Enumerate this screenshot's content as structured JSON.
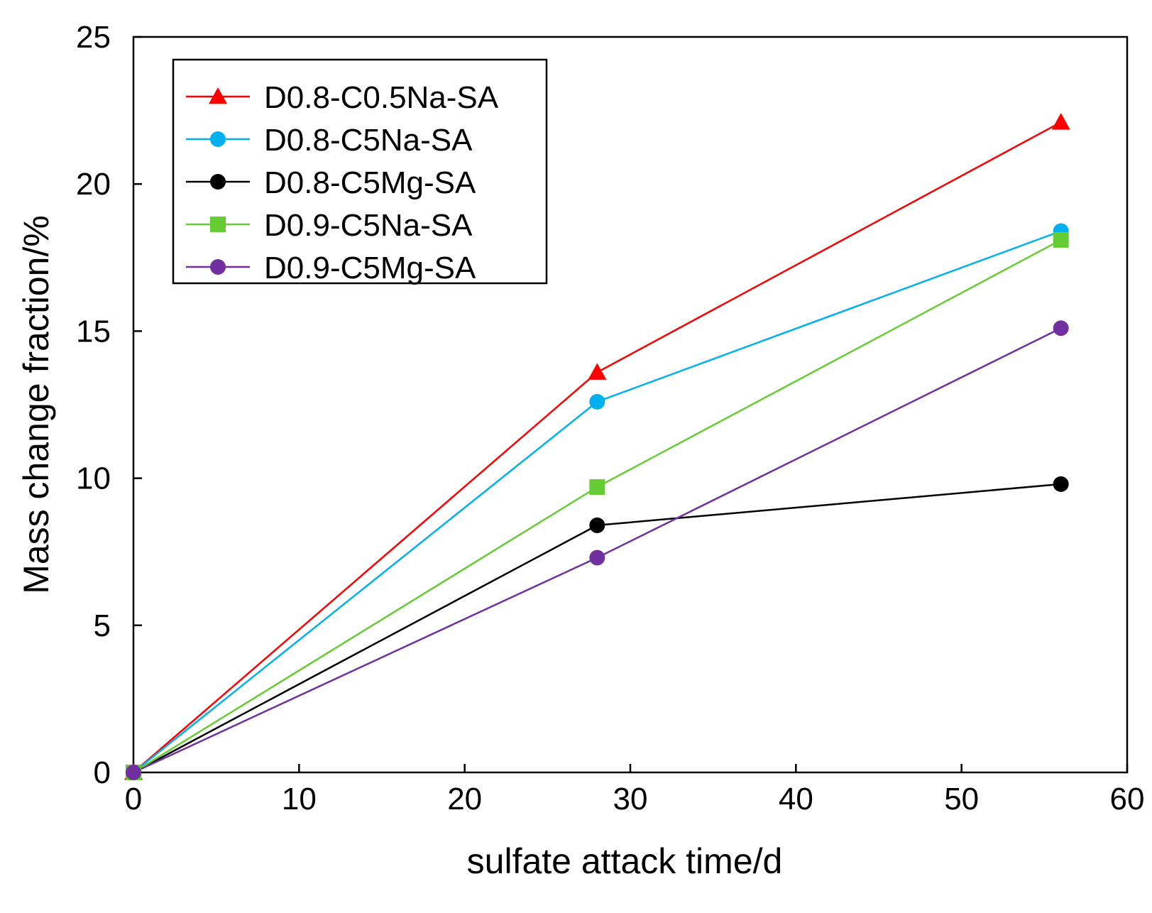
{
  "chart_data": {
    "type": "line",
    "title": "",
    "xlabel": "sulfate attack  time/d",
    "ylabel": "Mass change fraction/%",
    "xlim": [
      0,
      60
    ],
    "ylim": [
      0,
      25
    ],
    "xticks": [
      0,
      10,
      20,
      30,
      40,
      50,
      60
    ],
    "yticks": [
      0,
      5,
      10,
      15,
      20,
      25
    ],
    "grid": false,
    "legend_position": "top-left",
    "x": [
      0,
      28,
      56
    ],
    "series": [
      {
        "name": "D0.8-C0.5Na-SA",
        "color": "#ff0000",
        "marker": "triangle",
        "values": [
          0,
          13.6,
          22.1
        ]
      },
      {
        "name": "D0.8-C5Na-SA",
        "color": "#00b0f0",
        "marker": "circle",
        "values": [
          0,
          12.6,
          18.4
        ]
      },
      {
        "name": "D0.8-C5Mg-SA",
        "color": "#000000",
        "marker": "circle",
        "values": [
          0,
          8.4,
          9.8
        ]
      },
      {
        "name": "D0.9-C5Na-SA",
        "color": "#66cc33",
        "marker": "square",
        "values": [
          0,
          9.7,
          18.1
        ]
      },
      {
        "name": "D0.9-C5Mg-SA",
        "color": "#7030a0",
        "marker": "circle",
        "values": [
          0,
          7.3,
          15.1
        ]
      }
    ]
  }
}
